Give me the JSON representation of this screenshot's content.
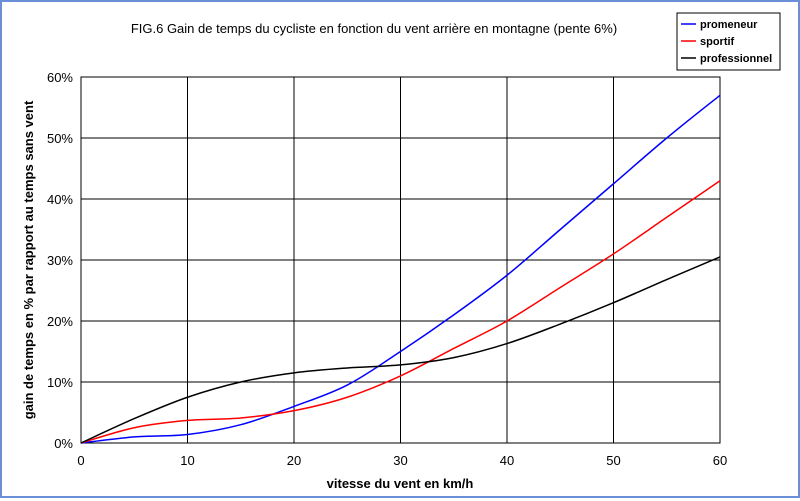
{
  "chart_data": {
    "type": "line",
    "title": "FIG.6  Gain de temps du cycliste en fonction du vent arrière en montagne (pente 6%)",
    "xlabel": "vitesse du vent en km/h",
    "ylabel": "gain de temps en % par rapport au temps sans vent",
    "xlim": [
      0,
      60
    ],
    "ylim": [
      0,
      60
    ],
    "x_ticks": [
      "0",
      "10",
      "20",
      "30",
      "40",
      "50",
      "60"
    ],
    "y_ticks": [
      "0%",
      "10%",
      "20%",
      "30%",
      "40%",
      "50%",
      "60%"
    ],
    "grid": true,
    "legend_position": "top-right",
    "series": [
      {
        "name": "promeneur",
        "color": "#0000ff",
        "x": [
          0,
          5,
          10,
          15,
          20,
          25,
          30,
          35,
          40,
          45,
          50,
          55,
          60
        ],
        "y": [
          0,
          1,
          1.4,
          3,
          6,
          9.5,
          15,
          21,
          27.5,
          35,
          42.5,
          50,
          57
        ]
      },
      {
        "name": "sportif",
        "color": "#ff0000",
        "x": [
          0,
          5,
          10,
          15,
          20,
          25,
          30,
          35,
          40,
          45,
          50,
          55,
          60
        ],
        "y": [
          0,
          2.5,
          3.7,
          4.1,
          5.3,
          7.5,
          11,
          15.5,
          20,
          25.5,
          31,
          37,
          43
        ]
      },
      {
        "name": "professionnel",
        "color": "#000000",
        "x": [
          0,
          5,
          10,
          15,
          20,
          25,
          30,
          35,
          40,
          45,
          50,
          55,
          60
        ],
        "y": [
          0,
          4,
          7.5,
          10,
          11.5,
          12.3,
          12.8,
          14,
          16.3,
          19.5,
          23,
          26.8,
          30.5
        ]
      }
    ]
  }
}
